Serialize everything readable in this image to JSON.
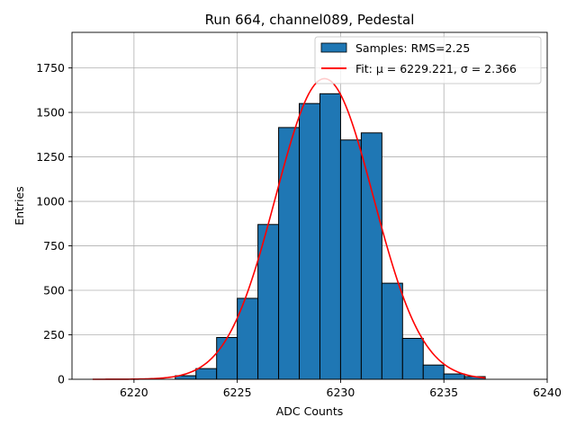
{
  "chart_data": {
    "type": "bar",
    "title": "Run 664, channel089, Pedestal",
    "xlabel": "ADC Counts",
    "ylabel": "Entries",
    "xlim": [
      6217,
      6240
    ],
    "ylim": [
      0,
      1950
    ],
    "xticks": [
      6220,
      6225,
      6230,
      6235,
      6240
    ],
    "yticks": [
      0,
      250,
      500,
      750,
      1000,
      1250,
      1500,
      1750
    ],
    "grid": true,
    "legend_position": "top-right",
    "bin_width": 1,
    "bin_edges_start": [
      6222,
      6223,
      6224,
      6225,
      6226,
      6227,
      6228,
      6229,
      6230,
      6231,
      6232,
      6233,
      6234,
      6235,
      6236
    ],
    "series": [
      {
        "name": "Samples: RMS=2.25",
        "kind": "histogram",
        "color": "#1f77b4",
        "edgecolor": "#000000",
        "values": [
          20,
          60,
          235,
          455,
          870,
          1415,
          1550,
          1605,
          1345,
          1385,
          540,
          230,
          80,
          30,
          15
        ]
      },
      {
        "name": "Fit: μ = 6229.221, σ = 2.366",
        "kind": "gaussian-fit",
        "color": "#ff0000",
        "mu": 6229.221,
        "sigma": 2.366,
        "amplitude": 1690,
        "x_range": [
          6218,
          6237
        ]
      }
    ]
  }
}
